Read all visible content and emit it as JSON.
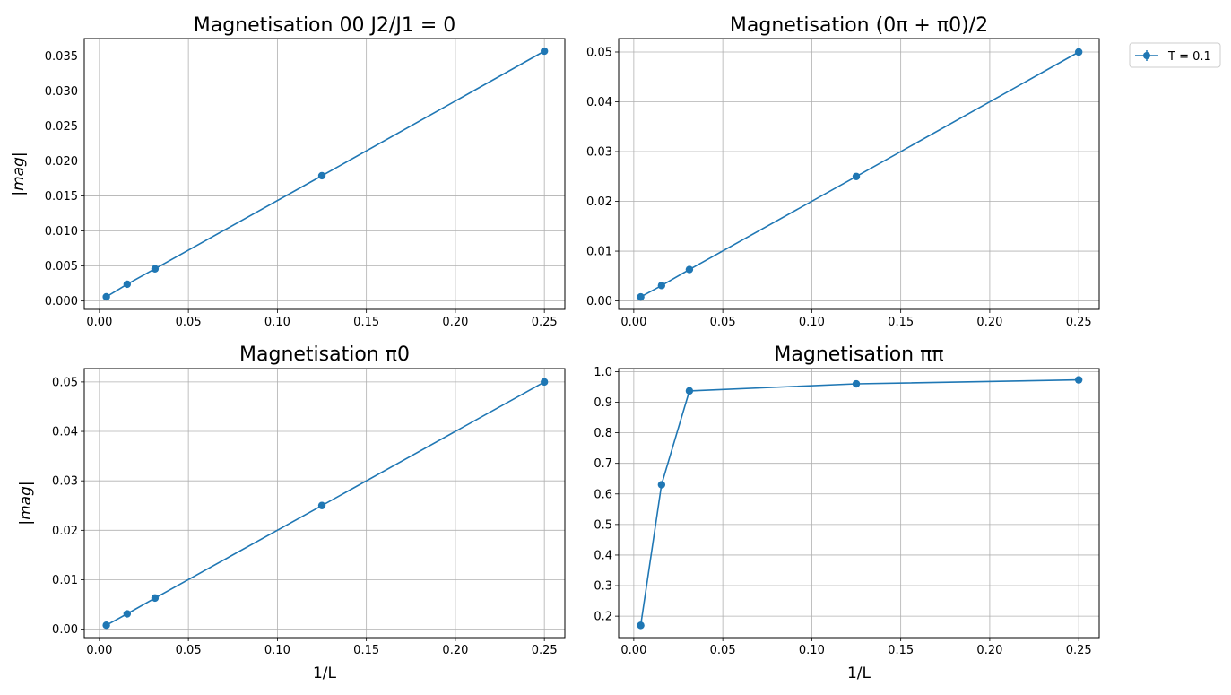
{
  "chart_data": [
    {
      "type": "line",
      "title": "Magnetisation 00 J2/J1 = 0",
      "xlabel": "",
      "ylabel": "|mag|",
      "xlim": [
        -0.0085,
        0.2615
      ],
      "ylim": [
        -0.0012,
        0.0375
      ],
      "xticks": [
        "0.00",
        "0.05",
        "0.10",
        "0.15",
        "0.20",
        "0.25"
      ],
      "yticks": [
        "0.000",
        "0.005",
        "0.010",
        "0.015",
        "0.020",
        "0.025",
        "0.030",
        "0.035"
      ],
      "grid": true,
      "series": [
        {
          "name": "T = 0.1",
          "color": "#1f77b4",
          "x": [
            0.0039,
            0.0156,
            0.03125,
            0.125,
            0.25
          ],
          "y": [
            0.0006,
            0.0024,
            0.0046,
            0.0179,
            0.0357
          ]
        }
      ]
    },
    {
      "type": "line",
      "title": "Magnetisation (0π + π0)/2",
      "xlabel": "",
      "ylabel": "",
      "xlim": [
        -0.0085,
        0.2615
      ],
      "ylim": [
        -0.0017,
        0.0527
      ],
      "xticks": [
        "0.00",
        "0.05",
        "0.10",
        "0.15",
        "0.20",
        "0.25"
      ],
      "yticks": [
        "0.00",
        "0.01",
        "0.02",
        "0.03",
        "0.04",
        "0.05"
      ],
      "grid": true,
      "series": [
        {
          "name": "T = 0.1",
          "color": "#1f77b4",
          "x": [
            0.0039,
            0.0156,
            0.03125,
            0.125,
            0.25
          ],
          "y": [
            0.0008,
            0.0031,
            0.0063,
            0.025,
            0.05
          ]
        }
      ]
    },
    {
      "type": "line",
      "title": "Magnetisation π0",
      "xlabel": "1/L",
      "ylabel": "|mag|",
      "xlim": [
        -0.0085,
        0.2615
      ],
      "ylim": [
        -0.0017,
        0.0527
      ],
      "xticks": [
        "0.00",
        "0.05",
        "0.10",
        "0.15",
        "0.20",
        "0.25"
      ],
      "yticks": [
        "0.00",
        "0.01",
        "0.02",
        "0.03",
        "0.04",
        "0.05"
      ],
      "grid": true,
      "series": [
        {
          "name": "T = 0.1",
          "color": "#1f77b4",
          "x": [
            0.0039,
            0.0156,
            0.03125,
            0.125,
            0.25
          ],
          "y": [
            0.0008,
            0.0031,
            0.0063,
            0.025,
            0.05
          ]
        }
      ]
    },
    {
      "type": "line",
      "title": "Magnetisation ππ",
      "xlabel": "1/L",
      "ylabel": "",
      "xlim": [
        -0.0085,
        0.2615
      ],
      "ylim": [
        0.13,
        1.01
      ],
      "xticks": [
        "0.00",
        "0.05",
        "0.10",
        "0.15",
        "0.20",
        "0.25"
      ],
      "yticks": [
        "0.2",
        "0.3",
        "0.4",
        "0.5",
        "0.6",
        "0.7",
        "0.8",
        "0.9",
        "1.0"
      ],
      "grid": true,
      "series": [
        {
          "name": "T = 0.1",
          "color": "#1f77b4",
          "x": [
            0.0039,
            0.0156,
            0.03125,
            0.125,
            0.25
          ],
          "y": [
            0.17,
            0.63,
            0.937,
            0.96,
            0.973
          ]
        }
      ]
    }
  ],
  "legend": {
    "label": "T = 0.1",
    "color": "#1f77b4",
    "position": "outside-top-right"
  }
}
